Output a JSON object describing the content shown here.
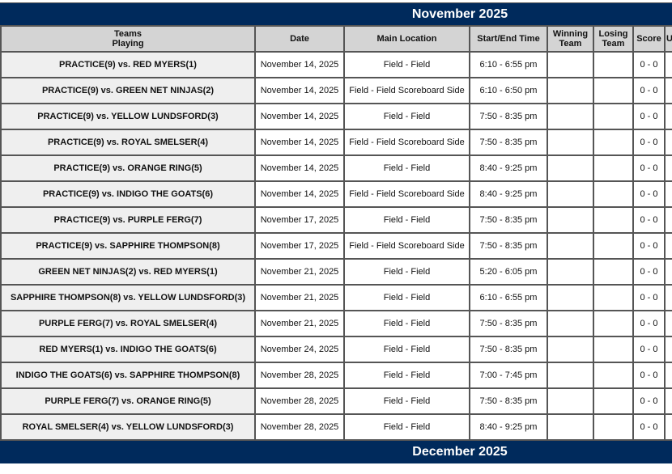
{
  "month_title": "November 2025",
  "next_month_title": "December 2025",
  "headers": {
    "teams": "Teams",
    "teams2": "Playing",
    "date": "Date",
    "location": "Main Location",
    "time": "Start/End Time",
    "winning": "Winning",
    "winning2": "Team",
    "losing": "Losing",
    "losing2": "Team",
    "score": "Score",
    "extra": "U"
  },
  "games": [
    {
      "teams": "PRACTICE(9) vs. RED MYERS(1)",
      "date": "November 14, 2025",
      "location": "Field - Field",
      "time": "6:10 - 6:55 pm",
      "score": "0 - 0"
    },
    {
      "teams": "PRACTICE(9) vs. GREEN NET NINJAS(2)",
      "date": "November 14, 2025",
      "location": "Field - Field Scoreboard Side",
      "time": "6:10 - 6:50 pm",
      "score": "0 - 0"
    },
    {
      "teams": "PRACTICE(9) vs. YELLOW LUNDSFORD(3)",
      "date": "November 14, 2025",
      "location": "Field - Field",
      "time": "7:50 - 8:35 pm",
      "score": "0 - 0"
    },
    {
      "teams": "PRACTICE(9) vs. ROYAL SMELSER(4)",
      "date": "November 14, 2025",
      "location": "Field - Field Scoreboard Side",
      "time": "7:50 - 8:35 pm",
      "score": "0 - 0"
    },
    {
      "teams": "PRACTICE(9) vs. ORANGE RING(5)",
      "date": "November 14, 2025",
      "location": "Field - Field",
      "time": "8:40 - 9:25 pm",
      "score": "0 - 0"
    },
    {
      "teams": "PRACTICE(9) vs. INDIGO THE GOATS(6)",
      "date": "November 14, 2025",
      "location": "Field - Field Scoreboard Side",
      "time": "8:40 - 9:25 pm",
      "score": "0 - 0"
    },
    {
      "teams": "PRACTICE(9) vs. PURPLE FERG(7)",
      "date": "November 17, 2025",
      "location": "Field - Field",
      "time": "7:50 - 8:35 pm",
      "score": "0 - 0"
    },
    {
      "teams": "PRACTICE(9) vs. SAPPHIRE THOMPSON(8)",
      "date": "November 17, 2025",
      "location": "Field - Field Scoreboard Side",
      "time": "7:50 - 8:35 pm",
      "score": "0 - 0"
    },
    {
      "teams": "GREEN NET NINJAS(2) vs. RED MYERS(1)",
      "date": "November 21, 2025",
      "location": "Field - Field",
      "time": "5:20 - 6:05 pm",
      "score": "0 - 0"
    },
    {
      "teams": "SAPPHIRE THOMPSON(8) vs. YELLOW LUNDSFORD(3)",
      "date": "November 21, 2025",
      "location": "Field - Field",
      "time": "6:10 - 6:55 pm",
      "score": "0 - 0"
    },
    {
      "teams": "PURPLE FERG(7) vs. ROYAL SMELSER(4)",
      "date": "November 21, 2025",
      "location": "Field - Field",
      "time": "7:50 - 8:35 pm",
      "score": "0 - 0"
    },
    {
      "teams": "RED MYERS(1) vs. INDIGO THE GOATS(6)",
      "date": "November 24, 2025",
      "location": "Field - Field",
      "time": "7:50 - 8:35 pm",
      "score": "0 - 0"
    },
    {
      "teams": "INDIGO THE GOATS(6) vs. SAPPHIRE THOMPSON(8)",
      "date": "November 28, 2025",
      "location": "Field - Field",
      "time": "7:00 - 7:45 pm",
      "score": "0 - 0"
    },
    {
      "teams": "PURPLE FERG(7) vs. ORANGE RING(5)",
      "date": "November 28, 2025",
      "location": "Field - Field",
      "time": "7:50 - 8:35 pm",
      "score": "0 - 0"
    },
    {
      "teams": "ROYAL SMELSER(4) vs. YELLOW LUNDSFORD(3)",
      "date": "November 28, 2025",
      "location": "Field - Field",
      "time": "8:40 - 9:25 pm",
      "score": "0 - 0"
    }
  ],
  "colors": {
    "header_bar": "#002a5c",
    "column_header": "#d4d4d4",
    "team_cell": "#efefef"
  }
}
